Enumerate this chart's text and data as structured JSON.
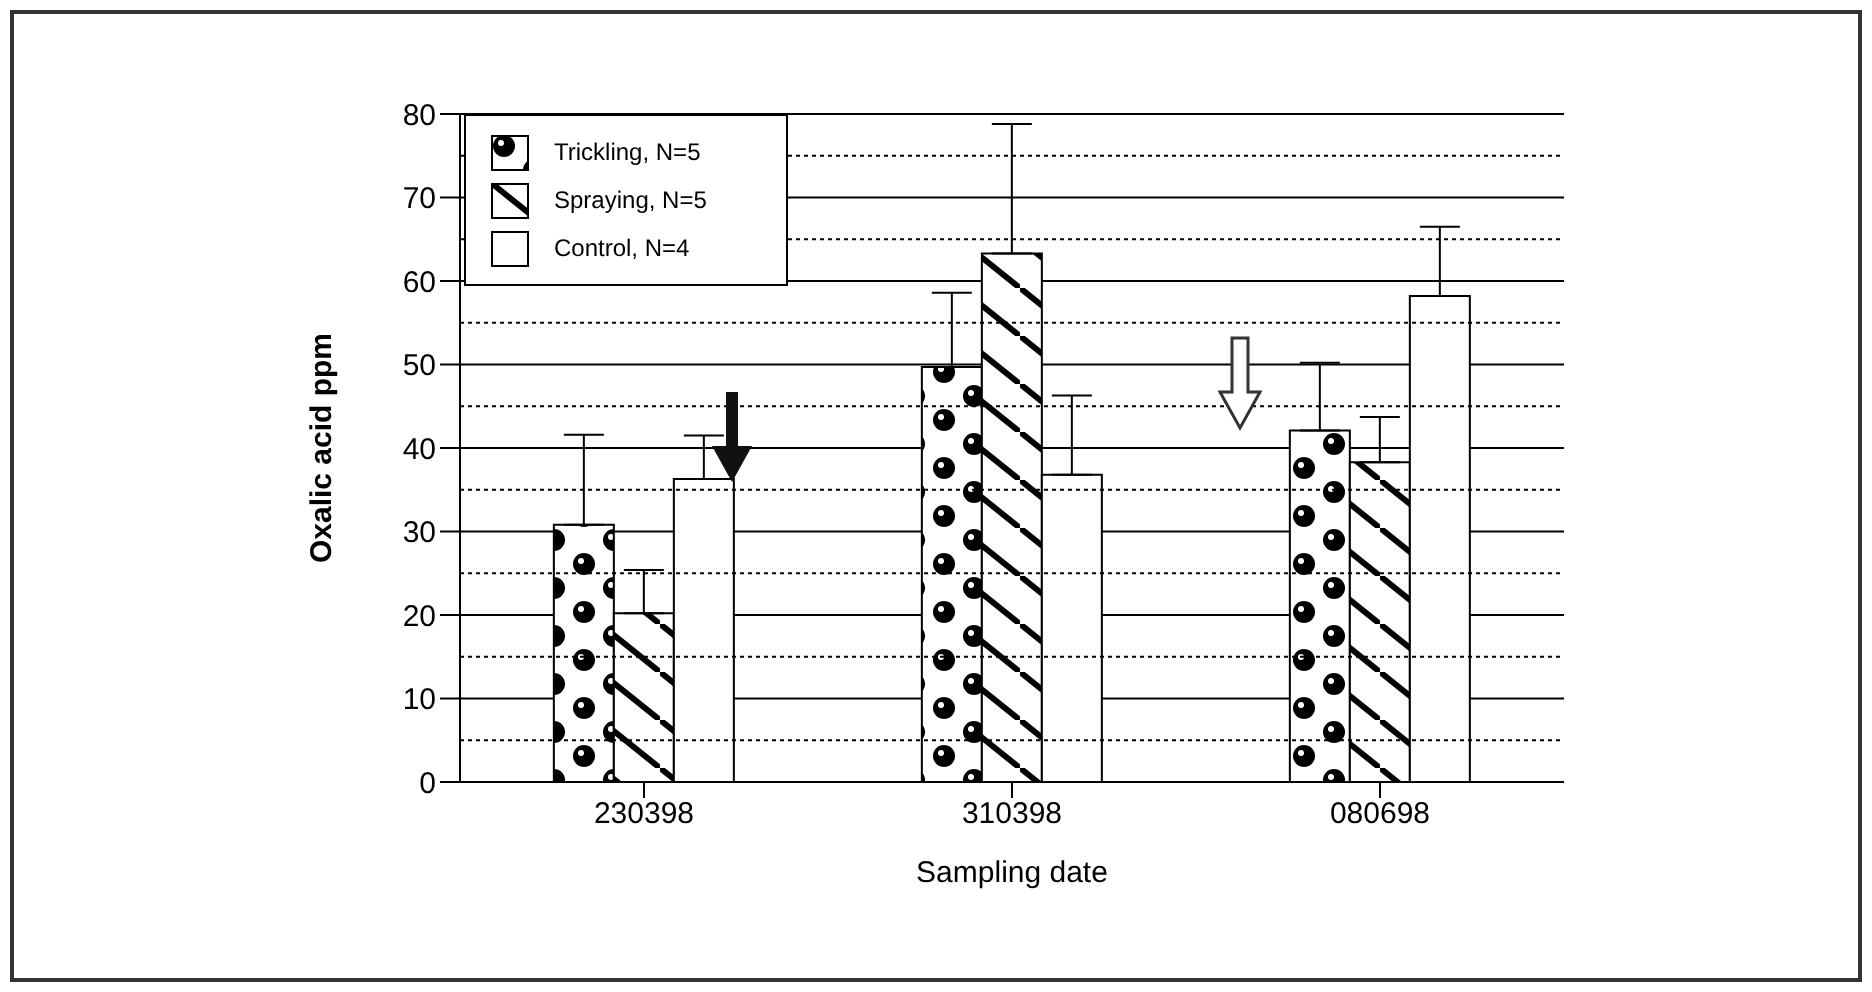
{
  "chart_data": {
    "type": "bar",
    "xlabel": "Sampling date",
    "ylabel": "Oxalic acid ppm",
    "categories": [
      "230398",
      "310398",
      "080698"
    ],
    "series": [
      {
        "name": "Trickling, N=5",
        "color": "#000000",
        "values": [
          30.8,
          49.7,
          42.1
        ],
        "errors": [
          [
            30.8,
            41.6
          ],
          [
            49.7,
            58.6
          ],
          [
            42.1,
            50.2
          ]
        ]
      },
      {
        "name": "Spraying, N=5",
        "color": "#000000",
        "values": [
          20.2,
          63.3,
          38.3
        ],
        "errors": [
          [
            20.2,
            25.4
          ],
          [
            63.3,
            78.8
          ],
          [
            38.3,
            43.7
          ]
        ]
      },
      {
        "name": "Control, N=4",
        "color": "#ffffff",
        "values": [
          36.3,
          36.8,
          58.2
        ],
        "errors": [
          [
            36.3,
            41.5
          ],
          [
            36.8,
            46.3
          ],
          [
            58.2,
            66.5
          ]
        ]
      }
    ],
    "ylim": [
      0,
      80
    ],
    "yticks": [
      0,
      10,
      20,
      30,
      40,
      50,
      60,
      70,
      80
    ],
    "grid": "y",
    "legend": "top left"
  }
}
